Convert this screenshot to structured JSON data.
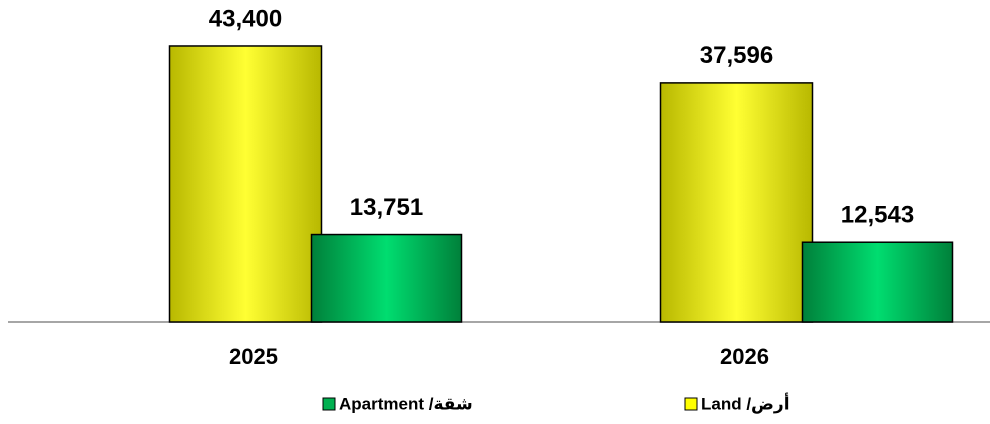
{
  "chart_data": {
    "type": "bar",
    "categories": [
      "2025",
      "2026"
    ],
    "series": [
      {
        "name": "أرض/ Land",
        "color": "#ffff00",
        "values": [
          43400,
          37596
        ],
        "value_labels": [
          "43,400",
          "37,596"
        ]
      },
      {
        "name": "شقة/ Apartment",
        "color": "#00b050",
        "values": [
          13751,
          12543
        ],
        "value_labels": [
          "13,751",
          "12,543"
        ]
      }
    ],
    "ylim": [
      0,
      50000
    ]
  }
}
